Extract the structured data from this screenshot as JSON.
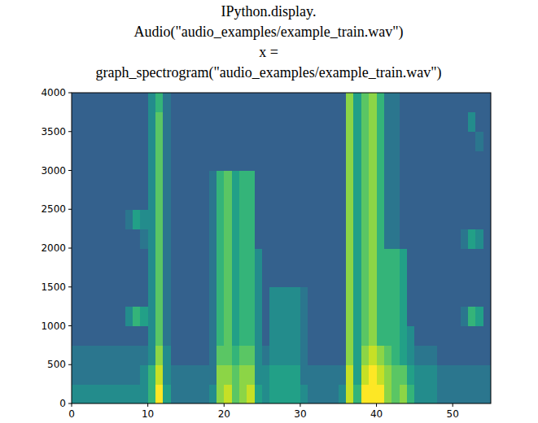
{
  "code": {
    "lines": [
      "IPython.display.",
      "Audio(\"audio_examples/example_train.wav\")",
      "x =",
      "graph_spectrogram(\"audio_examples/example_train.wav\")"
    ]
  },
  "chart_data": {
    "type": "heatmap",
    "xlim": [
      0,
      55
    ],
    "ylim": [
      0,
      4000
    ],
    "xticks": [
      0,
      10,
      20,
      30,
      40,
      50
    ],
    "yticks": [
      0,
      500,
      1000,
      1500,
      2000,
      2500,
      3000,
      3500,
      4000
    ],
    "grid": false,
    "x_bins": [
      0,
      1,
      2,
      3,
      4,
      5,
      6,
      7,
      8,
      9,
      10,
      11,
      12,
      13,
      14,
      15,
      16,
      17,
      18,
      19,
      20,
      21,
      22,
      23,
      24,
      25,
      26,
      27,
      28,
      29,
      30,
      31,
      32,
      33,
      34,
      35,
      36,
      37,
      38,
      39,
      40,
      41,
      42,
      43,
      44,
      45,
      46,
      47,
      48,
      49,
      50,
      51,
      52,
      53,
      54,
      55
    ],
    "y_bins": [
      0,
      250,
      500,
      750,
      1000,
      1250,
      1500,
      1750,
      2000,
      2250,
      2500,
      2750,
      3000,
      3250,
      3500,
      3750,
      4000
    ],
    "zlim": [
      0,
      9
    ],
    "cells": [
      [
        3,
        3,
        3,
        3,
        3,
        3,
        3,
        3,
        3,
        3,
        5,
        9,
        4,
        2,
        2,
        2,
        2,
        2,
        3,
        7,
        8,
        6,
        7,
        8,
        4,
        3,
        4,
        4,
        4,
        4,
        3,
        2,
        2,
        2,
        2,
        3,
        8,
        5,
        9,
        9,
        9,
        7,
        6,
        7,
        5,
        3,
        3,
        3,
        2,
        2,
        2,
        2,
        2,
        2,
        2
      ],
      [
        2,
        2,
        2,
        2,
        2,
        2,
        2,
        2,
        2,
        3,
        5,
        8,
        3,
        2,
        2,
        2,
        2,
        2,
        2,
        7,
        7,
        6,
        7,
        7,
        3,
        3,
        4,
        4,
        4,
        4,
        2,
        2,
        2,
        2,
        2,
        2,
        8,
        4,
        8,
        9,
        8,
        7,
        6,
        6,
        4,
        3,
        3,
        3,
        2,
        2,
        2,
        2,
        2,
        2,
        2
      ],
      [
        2,
        2,
        2,
        2,
        2,
        2,
        2,
        2,
        2,
        2,
        3,
        7,
        3,
        1,
        1,
        1,
        1,
        1,
        2,
        6,
        6,
        5,
        6,
        6,
        3,
        2,
        3,
        3,
        3,
        3,
        2,
        1,
        1,
        1,
        1,
        1,
        7,
        4,
        7,
        8,
        7,
        6,
        5,
        4,
        3,
        2,
        2,
        2,
        1,
        1,
        1,
        1,
        1,
        1,
        1
      ],
      [
        1,
        1,
        1,
        1,
        1,
        1,
        1,
        1,
        1,
        1,
        3,
        6,
        2,
        1,
        1,
        1,
        1,
        1,
        2,
        5,
        6,
        4,
        5,
        5,
        3,
        1,
        3,
        3,
        3,
        3,
        2,
        1,
        1,
        1,
        1,
        1,
        7,
        4,
        6,
        7,
        5,
        5,
        5,
        4,
        3,
        1,
        1,
        1,
        1,
        1,
        1,
        1,
        1,
        1,
        1
      ],
      [
        1,
        1,
        1,
        1,
        1,
        1,
        1,
        3,
        5,
        4,
        3,
        6,
        2,
        1,
        1,
        1,
        1,
        1,
        2,
        5,
        6,
        4,
        5,
        5,
        3,
        1,
        3,
        3,
        3,
        3,
        2,
        1,
        1,
        1,
        1,
        1,
        7,
        4,
        6,
        7,
        5,
        5,
        5,
        4,
        1,
        1,
        1,
        1,
        1,
        1,
        1,
        2,
        5,
        4,
        1
      ],
      [
        1,
        1,
        1,
        1,
        1,
        1,
        1,
        1,
        1,
        1,
        3,
        6,
        2,
        1,
        1,
        1,
        1,
        1,
        2,
        5,
        6,
        4,
        5,
        5,
        3,
        1,
        3,
        3,
        3,
        3,
        2,
        1,
        1,
        1,
        1,
        1,
        7,
        4,
        6,
        7,
        5,
        5,
        5,
        4,
        1,
        1,
        1,
        1,
        1,
        1,
        1,
        1,
        1,
        1,
        1
      ],
      [
        1,
        1,
        1,
        1,
        1,
        1,
        1,
        1,
        1,
        1,
        3,
        6,
        2,
        1,
        1,
        1,
        1,
        1,
        2,
        5,
        6,
        4,
        5,
        5,
        3,
        1,
        1,
        1,
        1,
        1,
        1,
        1,
        1,
        1,
        1,
        1,
        7,
        4,
        6,
        7,
        5,
        5,
        5,
        4,
        1,
        1,
        1,
        1,
        1,
        1,
        1,
        1,
        1,
        1,
        1
      ],
      [
        1,
        1,
        1,
        1,
        1,
        1,
        1,
        1,
        1,
        1,
        3,
        6,
        2,
        1,
        1,
        1,
        1,
        1,
        2,
        5,
        6,
        4,
        5,
        5,
        3,
        1,
        1,
        1,
        1,
        1,
        1,
        1,
        1,
        1,
        1,
        1,
        7,
        4,
        6,
        7,
        5,
        5,
        5,
        4,
        1,
        1,
        1,
        1,
        1,
        1,
        1,
        1,
        1,
        1,
        1
      ],
      [
        1,
        1,
        1,
        1,
        1,
        1,
        1,
        1,
        1,
        2,
        3,
        6,
        2,
        1,
        1,
        1,
        1,
        1,
        2,
        5,
        6,
        4,
        5,
        5,
        1,
        1,
        1,
        1,
        1,
        1,
        1,
        1,
        1,
        1,
        1,
        1,
        7,
        4,
        6,
        7,
        5,
        2,
        2,
        1,
        1,
        1,
        1,
        1,
        1,
        1,
        1,
        2,
        4,
        3,
        1
      ],
      [
        1,
        1,
        1,
        1,
        1,
        1,
        1,
        2,
        4,
        3,
        3,
        6,
        2,
        1,
        1,
        1,
        1,
        1,
        2,
        5,
        6,
        4,
        5,
        5,
        1,
        1,
        1,
        1,
        1,
        1,
        1,
        1,
        1,
        1,
        1,
        1,
        7,
        4,
        6,
        7,
        5,
        2,
        2,
        1,
        1,
        1,
        1,
        1,
        1,
        1,
        1,
        1,
        1,
        1,
        1
      ],
      [
        1,
        1,
        1,
        1,
        1,
        1,
        1,
        1,
        1,
        1,
        3,
        6,
        2,
        1,
        1,
        1,
        1,
        1,
        2,
        5,
        6,
        4,
        5,
        5,
        1,
        1,
        1,
        1,
        1,
        1,
        1,
        1,
        1,
        1,
        1,
        1,
        7,
        4,
        6,
        7,
        5,
        2,
        2,
        1,
        1,
        1,
        1,
        1,
        1,
        1,
        1,
        1,
        1,
        1,
        1
      ],
      [
        1,
        1,
        1,
        1,
        1,
        1,
        1,
        1,
        1,
        1,
        3,
        6,
        2,
        1,
        1,
        1,
        1,
        1,
        2,
        5,
        6,
        4,
        5,
        5,
        1,
        1,
        1,
        1,
        1,
        1,
        1,
        1,
        1,
        1,
        1,
        1,
        7,
        4,
        6,
        7,
        5,
        2,
        2,
        1,
        1,
        1,
        1,
        1,
        1,
        1,
        1,
        1,
        1,
        1,
        1
      ],
      [
        1,
        1,
        1,
        1,
        1,
        1,
        1,
        1,
        1,
        1,
        3,
        6,
        2,
        1,
        1,
        1,
        1,
        1,
        1,
        1,
        1,
        1,
        1,
        1,
        1,
        1,
        1,
        1,
        1,
        1,
        1,
        1,
        1,
        1,
        1,
        1,
        7,
        4,
        6,
        7,
        5,
        2,
        2,
        1,
        1,
        1,
        1,
        1,
        1,
        1,
        1,
        1,
        1,
        1,
        1
      ],
      [
        1,
        1,
        1,
        1,
        1,
        1,
        1,
        1,
        1,
        1,
        3,
        6,
        2,
        1,
        1,
        1,
        1,
        1,
        1,
        1,
        1,
        1,
        1,
        1,
        1,
        1,
        1,
        1,
        1,
        1,
        1,
        1,
        1,
        1,
        1,
        1,
        7,
        4,
        6,
        7,
        5,
        2,
        2,
        1,
        1,
        1,
        1,
        1,
        1,
        1,
        1,
        1,
        1,
        2,
        1
      ],
      [
        1,
        1,
        1,
        1,
        1,
        1,
        1,
        1,
        1,
        1,
        3,
        6,
        2,
        1,
        1,
        1,
        1,
        1,
        1,
        1,
        1,
        1,
        1,
        1,
        1,
        1,
        1,
        1,
        1,
        1,
        1,
        1,
        1,
        1,
        1,
        1,
        7,
        4,
        6,
        7,
        5,
        2,
        2,
        1,
        1,
        1,
        1,
        1,
        1,
        1,
        1,
        1,
        3,
        1,
        1
      ],
      [
        1,
        1,
        1,
        1,
        1,
        1,
        1,
        1,
        1,
        1,
        3,
        5,
        2,
        1,
        1,
        1,
        1,
        1,
        1,
        1,
        1,
        1,
        1,
        1,
        1,
        1,
        1,
        1,
        1,
        1,
        1,
        1,
        1,
        1,
        1,
        1,
        7,
        4,
        6,
        7,
        5,
        2,
        2,
        1,
        1,
        1,
        1,
        1,
        1,
        1,
        1,
        1,
        1,
        1,
        1
      ]
    ]
  }
}
